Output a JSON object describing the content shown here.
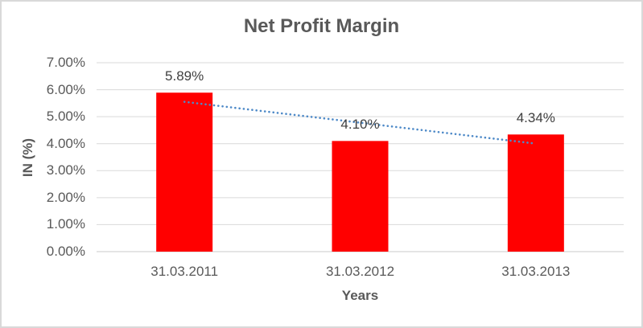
{
  "chart_data": {
    "type": "bar",
    "title": "Net Profit Margin",
    "categories": [
      "31.03.2011",
      "31.03.2012",
      "31.03.2013"
    ],
    "values": [
      5.89,
      4.1,
      4.34
    ],
    "data_labels": [
      "5.89%",
      "4.10%",
      "4.34%"
    ],
    "xlabel": "Years",
    "ylabel": "IN (%)",
    "ylim": [
      0,
      7
    ],
    "yticks": [
      "0.00%",
      "1.00%",
      "2.00%",
      "3.00%",
      "4.00%",
      "5.00%",
      "6.00%",
      "7.00%"
    ],
    "grid": true,
    "legend": "none",
    "trendline": {
      "kind": "linear",
      "style": "dotted",
      "spans": "first-to-last-category"
    },
    "colors": {
      "bar": "#FF0000",
      "trendline": "#4E8AC8",
      "title_text": "#595959",
      "axis_text": "#595959",
      "data_label_text": "#404040",
      "gridline": "#D9D9D9",
      "axis_line": "#C9C9C9",
      "frame_border": "#D9D9D9",
      "background": "#FFFFFF"
    }
  }
}
